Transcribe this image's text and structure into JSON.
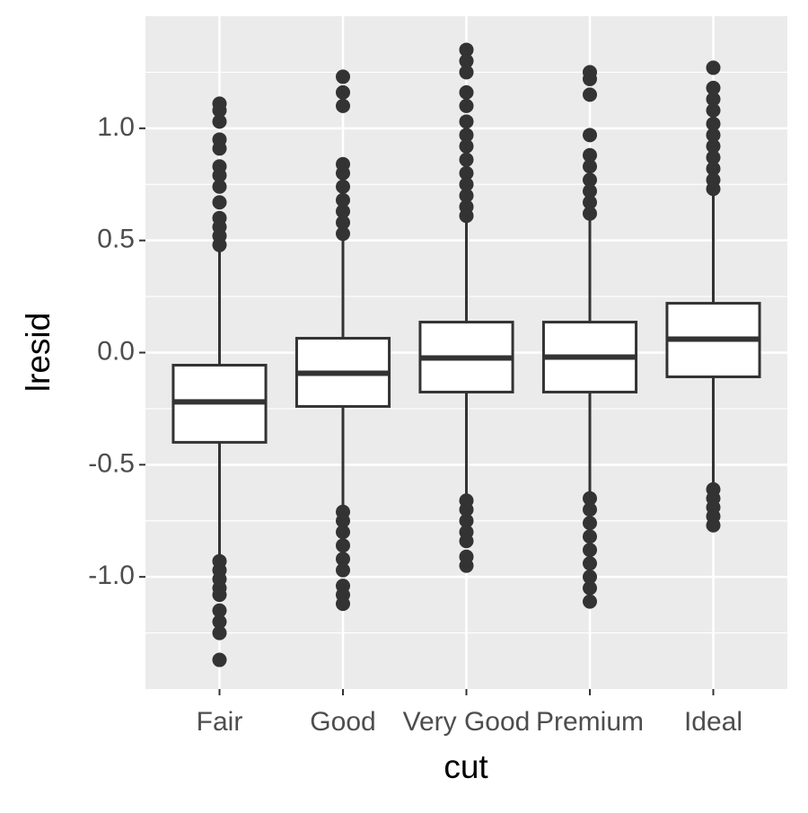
{
  "chart_data": {
    "type": "boxplot",
    "x_label": "cut",
    "y_label": "lresid",
    "categories": [
      "Fair",
      "Good",
      "Very Good",
      "Premium",
      "Ideal"
    ],
    "boxes": [
      {
        "min": -0.91,
        "q1": -0.4,
        "median": -0.22,
        "q3": -0.056,
        "max": 0.456,
        "outliers": [
          1.11,
          1.08,
          1.03,
          0.95,
          0.91,
          0.83,
          0.79,
          0.74,
          0.67,
          0.6,
          0.56,
          0.52,
          0.48,
          -0.93,
          -0.97,
          -1.01,
          -1.05,
          -1.08,
          -1.15,
          -1.2,
          -1.25,
          -1.37
        ]
      },
      {
        "min": -0.69,
        "q1": -0.24,
        "median": -0.092,
        "q3": 0.064,
        "max": 0.5,
        "outliers": [
          1.23,
          1.16,
          1.1,
          0.84,
          0.8,
          0.74,
          0.68,
          0.63,
          0.58,
          0.53,
          -0.71,
          -0.75,
          -0.8,
          -0.86,
          -0.92,
          -0.97,
          -1.04,
          -1.08,
          -1.12
        ]
      },
      {
        "min": -0.64,
        "q1": -0.176,
        "median": -0.024,
        "q3": 0.136,
        "max": 0.59,
        "outliers": [
          1.35,
          1.3,
          1.25,
          1.16,
          1.1,
          1.03,
          0.97,
          0.92,
          0.86,
          0.8,
          0.75,
          0.7,
          0.65,
          0.61,
          -0.66,
          -0.7,
          -0.75,
          -0.8,
          -0.84,
          -0.91,
          -0.95
        ]
      },
      {
        "min": -0.63,
        "q1": -0.176,
        "median": -0.02,
        "q3": 0.136,
        "max": 0.59,
        "outliers": [
          1.25,
          1.22,
          1.15,
          0.97,
          0.88,
          0.83,
          0.77,
          0.72,
          0.67,
          0.62,
          -0.65,
          -0.7,
          -0.76,
          -0.82,
          -0.88,
          -0.94,
          -1.0,
          -1.05,
          -1.11
        ]
      },
      {
        "min": -0.6,
        "q1": -0.108,
        "median": 0.06,
        "q3": 0.22,
        "max": 0.7,
        "outliers": [
          1.27,
          1.18,
          1.13,
          1.08,
          1.02,
          0.97,
          0.92,
          0.87,
          0.82,
          0.77,
          0.73,
          -0.61,
          -0.65,
          -0.69,
          -0.73,
          -0.77
        ]
      }
    ],
    "color": "#333333",
    "fill": "#ffffff",
    "ylim": [
      -1.5,
      1.5
    ],
    "yticks": [
      {
        "value": 1,
        "label": "1.0"
      },
      0.5,
      {
        "value": 0,
        "label": "0.0"
      },
      -0.5,
      {
        "value": -1,
        "label": "-1.0"
      }
    ],
    "grid": true
  }
}
